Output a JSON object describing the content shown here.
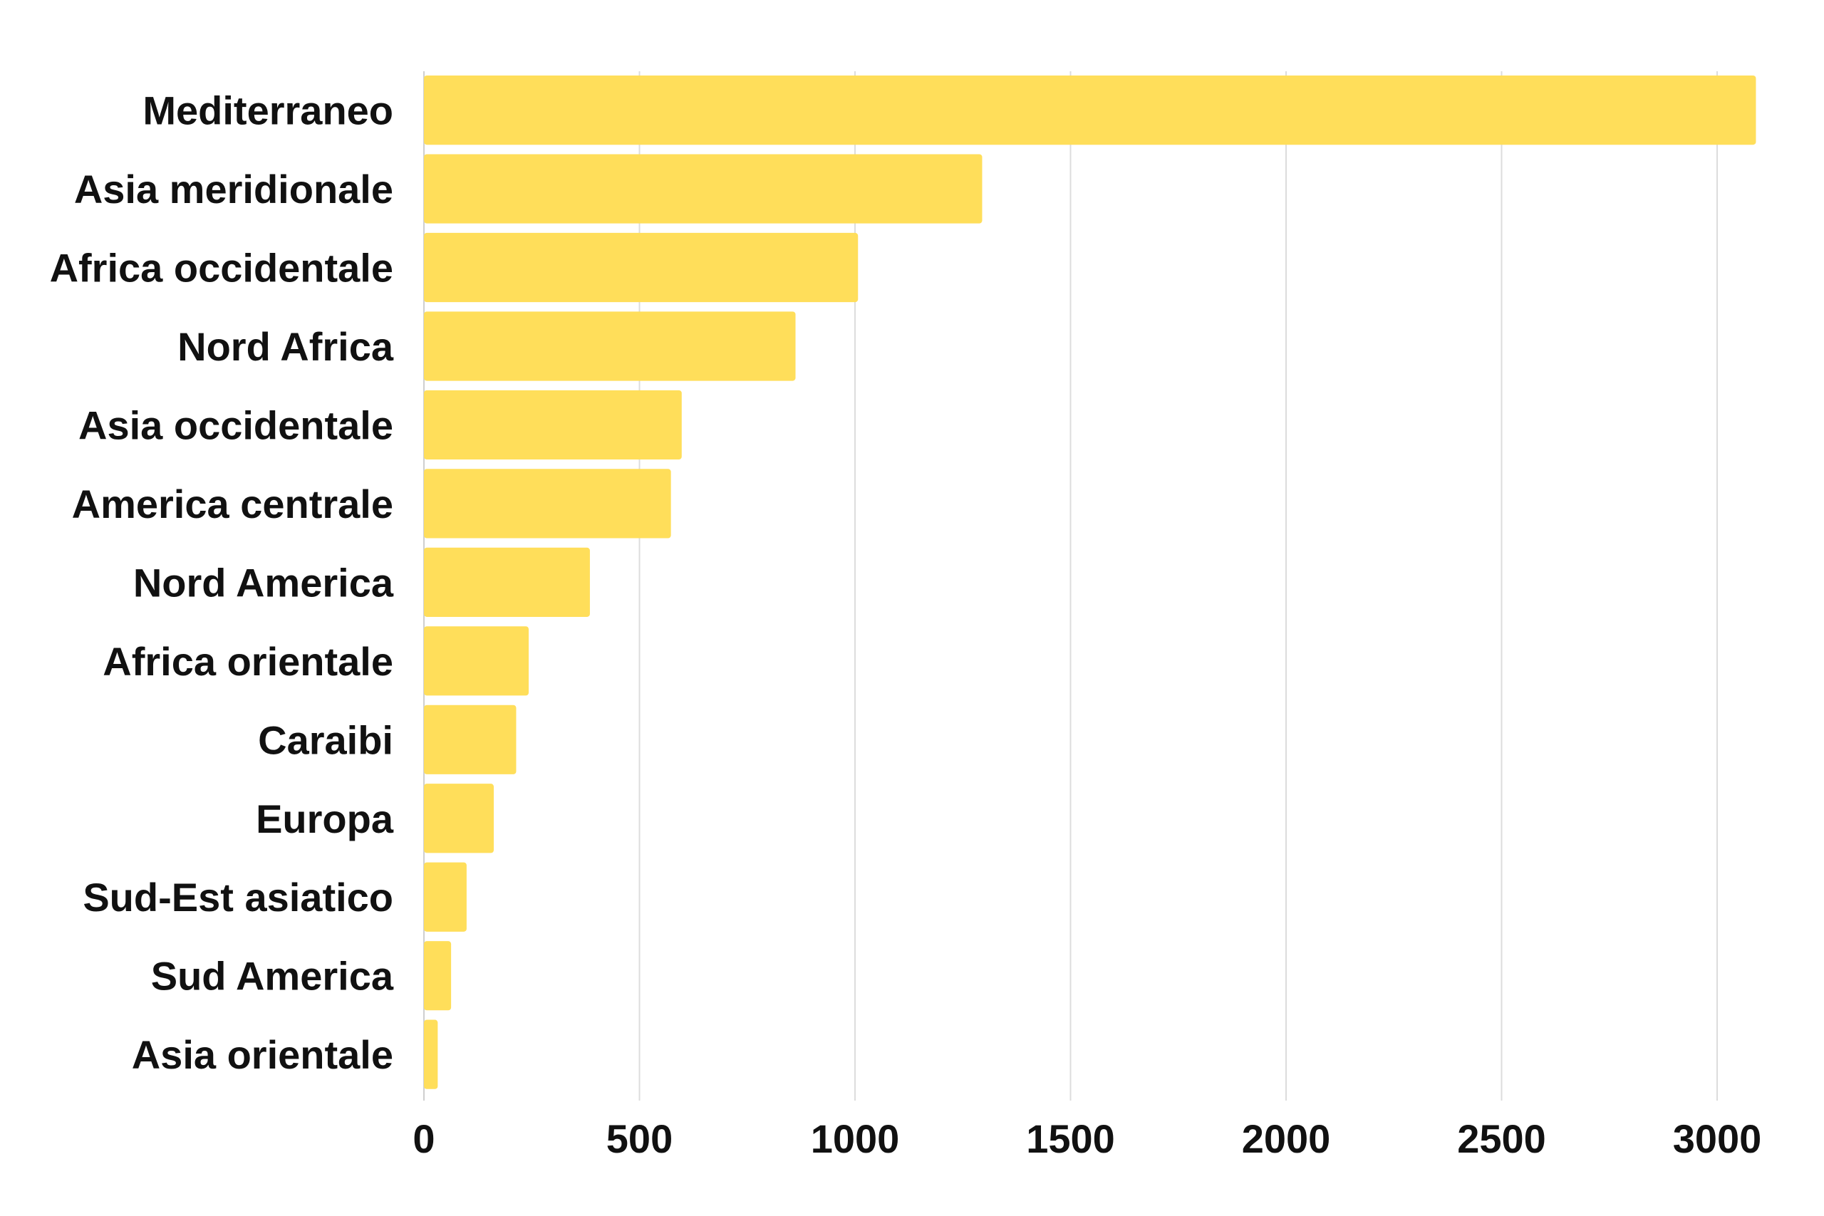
{
  "chart_data": {
    "type": "bar",
    "orientation": "horizontal",
    "title": "",
    "xlabel": "",
    "ylabel": "",
    "categories": [
      "Mediterraneo",
      "Asia meridionale",
      "Africa occidentale",
      "Nord Africa",
      "Asia occidentale",
      "America centrale",
      "Nord America",
      "Africa orientale",
      "Caraibi",
      "Europa",
      "Sud-Est asiatico",
      "Sud America",
      "Asia orientale"
    ],
    "values": [
      3090,
      1295,
      1007,
      862,
      598,
      573,
      385,
      243,
      214,
      162,
      99,
      63,
      32
    ],
    "xlim": [
      0,
      3000
    ],
    "xticks": [
      "0",
      "500",
      "1000",
      "1500",
      "2000",
      "2500",
      "3000"
    ],
    "grid": true,
    "legend": "none",
    "bar_color": "#ffde5a"
  }
}
